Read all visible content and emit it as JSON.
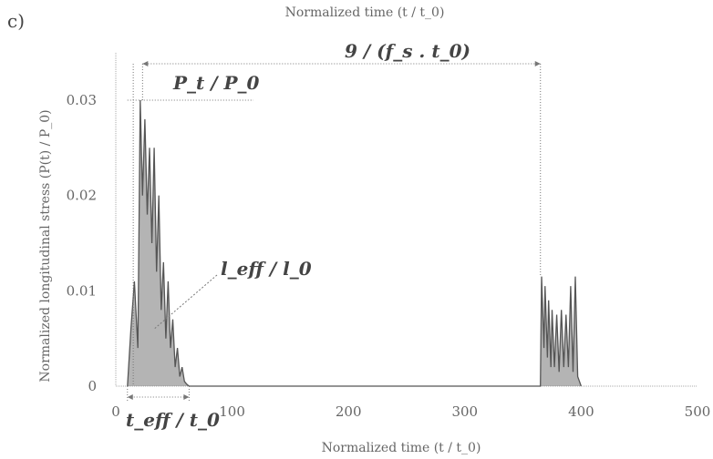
{
  "panel_label": "c)",
  "top_title": "Normalized time (t / t_0)",
  "chart_data": {
    "type": "line",
    "xlabel": "Normalized time (t / t_0)",
    "ylabel": "Normalized longitudinal stress (P(t) / P_0)",
    "xlim": [
      0,
      500
    ],
    "ylim": [
      0,
      0.03
    ],
    "x_ticks": [
      "0",
      "100",
      "200",
      "300",
      "400",
      "500"
    ],
    "y_ticks": [
      "0",
      "0.01",
      "0.02",
      "0.03"
    ],
    "grid": false,
    "series": [
      {
        "x": [
          10,
          13,
          16,
          19,
          21,
          23,
          25,
          27,
          29,
          31,
          33,
          35,
          37,
          39,
          41,
          43,
          45,
          47,
          49,
          51,
          53,
          55,
          57,
          59,
          61,
          63,
          365,
          366,
          368,
          369,
          371,
          372,
          374,
          375,
          377,
          379,
          381,
          383,
          385,
          387,
          389,
          391,
          393,
          395,
          397,
          400
        ],
        "y": [
          0,
          0.006,
          0.011,
          0.004,
          0.03,
          0.02,
          0.028,
          0.018,
          0.025,
          0.015,
          0.025,
          0.012,
          0.02,
          0.008,
          0.013,
          0.005,
          0.011,
          0.004,
          0.007,
          0.002,
          0.004,
          0.001,
          0.002,
          0.0005,
          0.0002,
          0,
          0,
          0.0115,
          0.004,
          0.0105,
          0.003,
          0.009,
          0.002,
          0.008,
          0.002,
          0.0075,
          0.0015,
          0.008,
          0.002,
          0.0075,
          0.002,
          0.0105,
          0.0015,
          0.0115,
          0.001,
          0
        ]
      }
    ],
    "annotations": {
      "pulse_period": "9 / (f_s . t_0)",
      "peak": "P_t / P_0",
      "length": "l_eff / l_0",
      "duration": "t_eff / t_0"
    }
  }
}
